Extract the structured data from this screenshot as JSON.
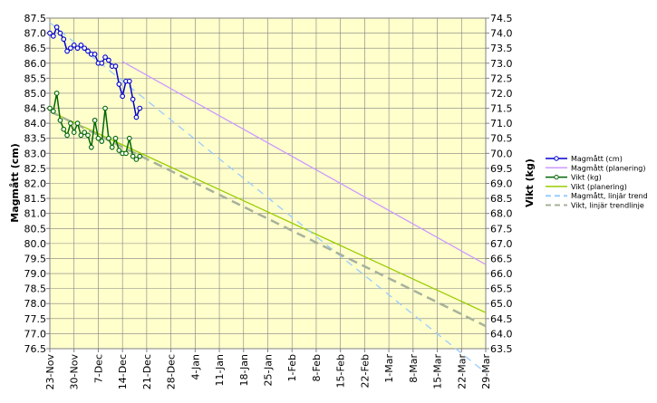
{
  "chart_data": {
    "type": "line",
    "x_axis": {
      "tick_labels": [
        "23-Nov",
        "30-Nov",
        "7-Dec",
        "14-Dec",
        "21-Dec",
        "28-Dec",
        "4-Jan",
        "11-Jan",
        "18-Jan",
        "25-Jan",
        "1-Feb",
        "8-Feb",
        "15-Feb",
        "22-Feb",
        "1-Mar",
        "8-Mar",
        "15-Mar",
        "22-Mar",
        "29-Mar"
      ],
      "range": [
        "23-Nov",
        "29-Mar"
      ]
    },
    "y_left": {
      "label": "Magmått (cm)",
      "range": [
        76.5,
        87.5
      ],
      "step": 0.5,
      "tick_labels": [
        "87.5",
        "87.0",
        "86.5",
        "86.0",
        "85.5",
        "85.0",
        "84.5",
        "84.0",
        "83.5",
        "83.0",
        "82.5",
        "82.0",
        "81.5",
        "81.0",
        "80.5",
        "80.0",
        "79.5",
        "79.0",
        "78.5",
        "78.0",
        "77.5",
        "77.0",
        "76.5"
      ]
    },
    "y_right": {
      "label": "Vikt (kg)",
      "range": [
        63.5,
        74.5
      ],
      "step": 0.5,
      "tick_labels": [
        "74.5",
        "74.0",
        "73.5",
        "73.0",
        "72.5",
        "72.0",
        "71.5",
        "71.0",
        "70.5",
        "70.0",
        "69.5",
        "69.0",
        "68.5",
        "68.0",
        "67.5",
        "67.0",
        "66.5",
        "66.0",
        "65.5",
        "65.0",
        "64.5",
        "64.0",
        "63.5"
      ]
    },
    "grid": true,
    "plot_background": "#ffffcc",
    "legend_position": "right",
    "series": [
      {
        "name": "Magmått (cm)",
        "axis": "left",
        "style": "line-markers",
        "color": "#0000cc",
        "x": [
          "23-Nov",
          "24-Nov",
          "25-Nov",
          "26-Nov",
          "27-Nov",
          "28-Nov",
          "29-Nov",
          "30-Nov",
          "1-Dec",
          "2-Dec",
          "3-Dec",
          "4-Dec",
          "5-Dec",
          "6-Dec",
          "7-Dec",
          "8-Dec",
          "9-Dec",
          "10-Dec",
          "11-Dec",
          "12-Dec",
          "13-Dec",
          "14-Dec",
          "15-Dec",
          "16-Dec",
          "17-Dec",
          "18-Dec",
          "19-Dec"
        ],
        "values": [
          87.0,
          86.9,
          87.2,
          87.0,
          86.8,
          86.4,
          86.5,
          86.6,
          86.5,
          86.6,
          86.5,
          86.4,
          86.3,
          86.3,
          86.0,
          86.0,
          86.2,
          86.1,
          85.9,
          85.9,
          85.3,
          84.9,
          85.4,
          85.4,
          84.8,
          84.2,
          84.5
        ]
      },
      {
        "name": "Magmått (planering)",
        "axis": "left",
        "style": "line",
        "color": "#cc99ff",
        "x": [
          "14-Dec",
          "29-Mar"
        ],
        "values": [
          86.05,
          79.3
        ]
      },
      {
        "name": "Vikt (kg)",
        "axis": "right",
        "style": "line-markers",
        "color": "#006600",
        "x": [
          "23-Nov",
          "24-Nov",
          "25-Nov",
          "26-Nov",
          "27-Nov",
          "28-Nov",
          "29-Nov",
          "30-Nov",
          "1-Dec",
          "2-Dec",
          "3-Dec",
          "4-Dec",
          "5-Dec",
          "6-Dec",
          "7-Dec",
          "8-Dec",
          "9-Dec",
          "10-Dec",
          "11-Dec",
          "12-Dec",
          "13-Dec",
          "14-Dec",
          "15-Dec",
          "16-Dec",
          "17-Dec",
          "18-Dec",
          "19-Dec"
        ],
        "values": [
          71.5,
          71.4,
          72.0,
          71.1,
          70.8,
          70.6,
          71.0,
          70.7,
          71.0,
          70.6,
          70.7,
          70.6,
          70.2,
          71.1,
          70.5,
          70.4,
          71.5,
          70.5,
          70.2,
          70.5,
          70.1,
          70.0,
          70.0,
          70.5,
          69.9,
          69.8,
          69.9
        ]
      },
      {
        "name": "Vikt (planering)",
        "axis": "right",
        "style": "line",
        "color": "#99cc00",
        "x": [
          "23-Nov",
          "29-Mar"
        ],
        "values": [
          71.4,
          64.7
        ]
      },
      {
        "name": "Magmått, linjär trend",
        "axis": "left",
        "style": "dashed",
        "color": "#99ccff",
        "x": [
          "23-Nov",
          "29-Mar"
        ],
        "values": [
          87.35,
          75.7
        ]
      },
      {
        "name": "Vikt, linjär trendlinje",
        "axis": "right",
        "style": "dashed",
        "color": "#a6b29a",
        "x": [
          "23-Nov",
          "29-Mar"
        ],
        "values": [
          71.4,
          64.25
        ]
      }
    ]
  }
}
